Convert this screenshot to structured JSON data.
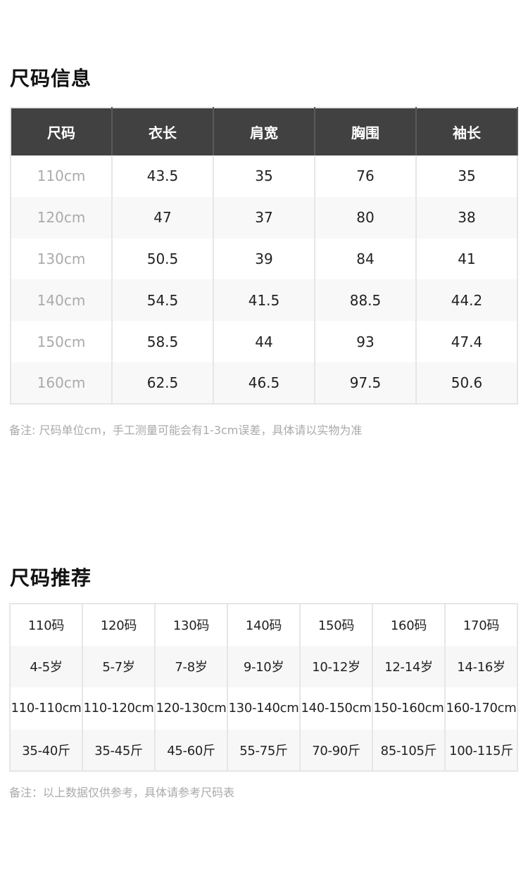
{
  "size_info": {
    "title": "尺码信息",
    "headers": [
      "尺码",
      "衣长",
      "肩宽",
      "胸围",
      "袖长"
    ],
    "rows": [
      [
        "110cm",
        "43.5",
        "35",
        "76",
        "35"
      ],
      [
        "120cm",
        "47",
        "37",
        "80",
        "38"
      ],
      [
        "130cm",
        "50.5",
        "39",
        "84",
        "41"
      ],
      [
        "140cm",
        "54.5",
        "41.5",
        "88.5",
        "44.2"
      ],
      [
        "150cm",
        "58.5",
        "44",
        "93",
        "47.4"
      ],
      [
        "160cm",
        "62.5",
        "46.5",
        "97.5",
        "50.6"
      ]
    ],
    "note": "备注: 尺码单位cm，手工测量可能会有1-3cm误差，具体请以实物为准"
  },
  "size_recommend": {
    "title": "尺码推荐",
    "rows": [
      [
        "110码",
        "120码",
        "130码",
        "140码",
        "150码",
        "160码",
        "170码"
      ],
      [
        "4-5岁",
        "5-7岁",
        "7-8岁",
        "9-10岁",
        "10-12岁",
        "12-14岁",
        "14-16岁"
      ],
      [
        "110-110cm",
        "110-120cm",
        "120-130cm",
        "130-140cm",
        "140-150cm",
        "150-160cm",
        "160-170cm"
      ],
      [
        "35-40斤",
        "35-45斤",
        "45-60斤",
        "55-75斤",
        "70-90斤",
        "85-105斤",
        "100-115斤"
      ]
    ],
    "note": "备注：以上数据仅供参考，具体请参考尺码表"
  },
  "colors": {
    "header_bg": "#414141",
    "border": "#e6e6e6",
    "muted": "#aaaaaa"
  }
}
